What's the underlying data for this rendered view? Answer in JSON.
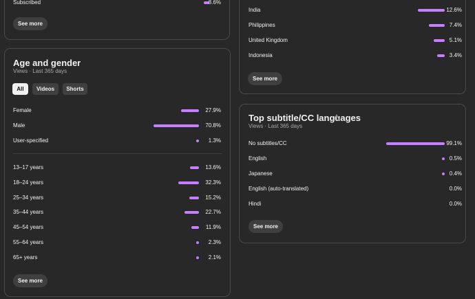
{
  "top_left": {
    "partial_row": {
      "label": "Subscribed",
      "value": "8.6%"
    },
    "see_more": "See more"
  },
  "age_gender": {
    "title": "Age and gender",
    "subtitle": "Views · Last 365 days",
    "chips": [
      "All",
      "Videos",
      "Shorts"
    ],
    "gender": [
      {
        "label": "Female",
        "value": "27.9%",
        "pct": 27.9
      },
      {
        "label": "Male",
        "value": "70.8%",
        "pct": 70.8
      },
      {
        "label": "User-specified",
        "value": "1.3%",
        "pct": 1.3
      }
    ],
    "age": [
      {
        "label": "13–17 years",
        "value": "13.6%",
        "pct": 13.6
      },
      {
        "label": "18–24 years",
        "value": "32.3%",
        "pct": 32.3
      },
      {
        "label": "25–34 years",
        "value": "15.2%",
        "pct": 15.2
      },
      {
        "label": "35–44 years",
        "value": "22.7%",
        "pct": 22.7
      },
      {
        "label": "45–54 years",
        "value": "11.9%",
        "pct": 11.9
      },
      {
        "label": "55–64 years",
        "value": "2.3%",
        "pct": 2.3
      },
      {
        "label": "65+ years",
        "value": "2.1%",
        "pct": 2.1
      }
    ],
    "see_more": "See more"
  },
  "geography": {
    "rows": [
      {
        "label": "India",
        "value": "12.6%",
        "pct": 12.6
      },
      {
        "label": "Philippines",
        "value": "7.4%",
        "pct": 7.4
      },
      {
        "label": "United Kingdom",
        "value": "5.1%",
        "pct": 5.1
      },
      {
        "label": "Indonesia",
        "value": "3.4%",
        "pct": 3.4
      }
    ],
    "see_more": "See more"
  },
  "subtitles": {
    "title": "Top subtitle/CC languages",
    "warning_icon": "warning-icon",
    "subtitle": "Views · Last 365 days",
    "rows": [
      {
        "label": "No subtitles/CC",
        "value": "99.1%",
        "pct": 99.1
      },
      {
        "label": "English",
        "value": "0.5%",
        "pct": 0.5
      },
      {
        "label": "Japanese",
        "value": "0.4%",
        "pct": 0.4
      },
      {
        "label": "English (auto-translated)",
        "value": "0.0%",
        "pct": 0.0
      },
      {
        "label": "Hindi",
        "value": "0.0%",
        "pct": 0.0
      }
    ],
    "see_more": "See more"
  },
  "colors": {
    "bar": "#c77dff",
    "background": "#282828",
    "border": "#4a4a4a"
  }
}
